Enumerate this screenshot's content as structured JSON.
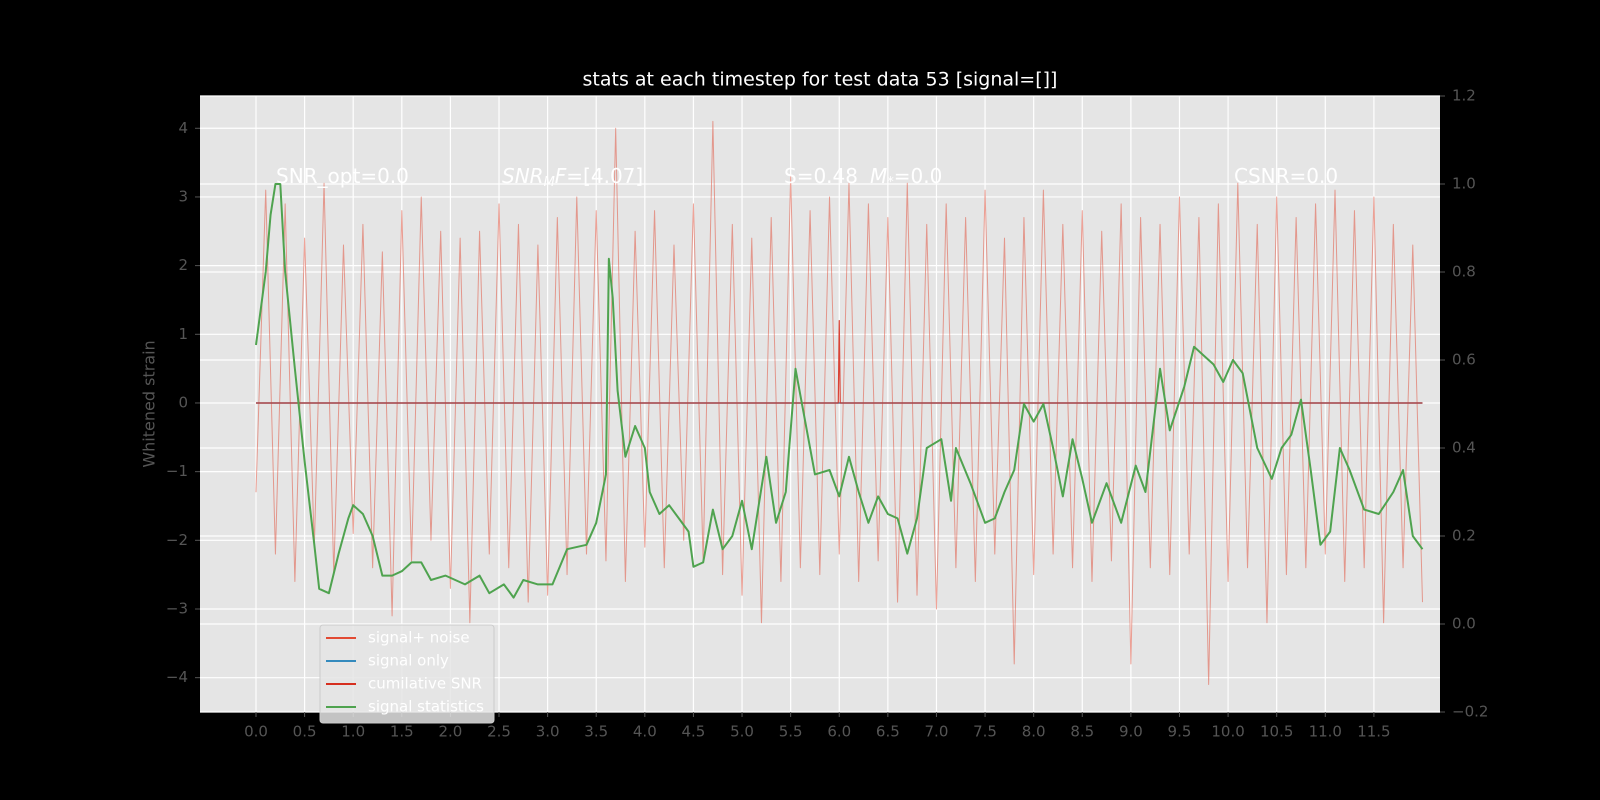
{
  "chart_data": {
    "type": "line",
    "title": "stats at each timestep for test data 53 [signal=[]]",
    "y_label": "Whitened strain",
    "annotations": [
      [
        "SNR_opt=0.0"
      ],
      [
        "SNR",
        "M",
        "F",
        "=[4.07]"
      ],
      [
        "S=0.48",
        "M",
        "*",
        "=0.0"
      ],
      [
        "CSNR=0.0"
      ]
    ],
    "xlim": [
      -0.576,
      12.18
    ],
    "xticks": [
      {
        "value": 0,
        "label": "0.0"
      },
      0.5,
      {
        "value": 1,
        "label": "1.0"
      },
      1.5,
      {
        "value": 2,
        "label": "2.0"
      },
      2.5,
      {
        "value": 3,
        "label": "3.0"
      },
      3.5,
      {
        "value": 4,
        "label": "4.0"
      },
      4.5,
      {
        "value": 5,
        "label": "5.0"
      },
      5.5,
      {
        "value": 6,
        "label": "6.0"
      },
      6.5,
      {
        "value": 7,
        "label": "7.0"
      },
      7.5,
      {
        "value": 8,
        "label": "8.0"
      },
      8.5,
      {
        "value": 9,
        "label": "9.0"
      },
      9.5,
      {
        "value": 10,
        "label": "10.0"
      },
      10.5,
      {
        "value": 11,
        "label": "11.0"
      },
      11.5
    ],
    "ylim": [
      -4.5,
      4.47
    ],
    "yticks": [
      {
        "value": -4,
        "label": "−4"
      },
      {
        "value": -3,
        "label": "−3"
      },
      {
        "value": -2,
        "label": "−2"
      },
      {
        "value": -1,
        "label": "−1"
      },
      0,
      1,
      2,
      3,
      4
    ],
    "y2lim": [
      -0.2,
      1.2
    ],
    "y2ticks": [
      {
        "value": -0.2,
        "label": "−0.2"
      },
      {
        "value": 0,
        "label": "0.0"
      },
      0.2,
      0.4,
      0.6,
      0.8,
      {
        "value": 1,
        "label": "1.0"
      },
      1.2
    ],
    "grid": true,
    "legend": "lower left",
    "series": [
      {
        "name": "signal+ noise",
        "color": "#e24a33",
        "x": [
          0,
          0.1,
          0.2,
          0.3,
          0.4,
          0.5,
          0.6,
          0.7,
          0.8,
          0.9,
          1,
          1.1,
          1.2,
          1.3,
          1.4,
          1.5,
          1.6,
          1.7,
          1.8,
          1.9,
          2,
          2.1,
          2.2,
          2.3,
          2.4,
          2.5,
          2.6,
          2.7,
          2.8,
          2.9,
          3,
          3.1,
          3.2,
          3.3,
          3.4,
          3.5,
          3.6,
          3.7,
          3.8,
          3.9,
          4,
          4.1,
          4.2,
          4.3,
          4.4,
          4.5,
          4.6,
          4.7,
          4.8,
          4.9,
          5,
          5.1,
          5.2,
          5.3,
          5.4,
          5.5,
          5.6,
          5.7,
          5.8,
          5.9,
          6,
          6.1,
          6.2,
          6.3,
          6.4,
          6.5,
          6.6,
          6.7,
          6.8,
          6.9,
          7,
          7.1,
          7.2,
          7.3,
          7.4,
          7.5,
          7.6,
          7.7,
          7.8,
          7.9,
          8,
          8.1,
          8.2,
          8.3,
          8.4,
          8.5,
          8.6,
          8.7,
          8.8,
          8.9,
          9,
          9.1,
          9.2,
          9.3,
          9.4,
          9.5,
          9.6,
          9.7,
          9.8,
          9.9,
          10,
          10.1,
          10.2,
          10.3,
          10.4,
          10.5,
          10.6,
          10.7,
          10.8,
          10.9,
          11,
          11.1,
          11.2,
          11.3,
          11.4,
          11.5,
          11.6,
          11.7,
          11.8,
          11.9,
          12
        ],
        "values": [
          -1.3,
          3.1,
          -2.2,
          2.9,
          -2.6,
          2.4,
          -2.1,
          3.2,
          -2.5,
          2.3,
          -1.9,
          2.6,
          -2.4,
          2.2,
          -3.1,
          2.8,
          -2.3,
          3.0,
          -2.0,
          2.5,
          -2.7,
          2.4,
          -3.2,
          2.5,
          -2.2,
          2.9,
          -2.4,
          2.6,
          -2.9,
          2.3,
          -2.8,
          2.7,
          -2.5,
          3.0,
          -2.2,
          2.8,
          -2.3,
          4.0,
          -2.6,
          2.5,
          -2.1,
          2.8,
          -2.4,
          2.3,
          -2.0,
          2.9,
          -2.3,
          4.1,
          -2.5,
          2.6,
          -2.8,
          2.4,
          -3.2,
          2.7,
          -2.6,
          3.3,
          -2.4,
          2.8,
          -2.5,
          3.0,
          -2.2,
          3.2,
          -2.6,
          2.9,
          -2.3,
          2.7,
          -2.9,
          3.2,
          -2.8,
          2.6,
          -3.0,
          2.9,
          -2.4,
          2.7,
          -2.6,
          3.1,
          -2.2,
          2.4,
          -3.8,
          2.7,
          -2.5,
          3.1,
          -2.2,
          2.6,
          -2.4,
          2.8,
          -2.6,
          2.5,
          -2.3,
          2.9,
          -3.8,
          2.7,
          -2.4,
          2.6,
          -2.5,
          3.0,
          -2.2,
          2.7,
          -4.1,
          2.9,
          -2.6,
          3.2,
          -2.4,
          2.6,
          -3.2,
          3.0,
          -2.5,
          2.7,
          -2.4,
          2.9,
          -2.2,
          3.1,
          -2.6,
          2.8,
          -2.4,
          3.0,
          -3.2,
          2.6,
          -2.4,
          2.3,
          -2.9
        ]
      },
      {
        "name": "signal only",
        "color": "#348abd",
        "x": [
          0,
          12
        ],
        "values": [
          0,
          0
        ]
      },
      {
        "name": "cumilative SNR",
        "color": "#d62f1f",
        "x": [
          0,
          5.99,
          6.0,
          6.01,
          12
        ],
        "values": [
          0,
          0,
          1.2,
          0,
          0
        ]
      },
      {
        "name": "signal statistics",
        "color": "#4fa34f",
        "axis": "y2",
        "x": [
          0,
          0.1,
          0.15,
          0.2,
          0.25,
          0.3,
          0.4,
          0.5,
          0.6,
          0.65,
          0.75,
          0.85,
          0.95,
          1.0,
          1.1,
          1.2,
          1.3,
          1.4,
          1.5,
          1.6,
          1.7,
          1.8,
          1.95,
          2.05,
          2.15,
          2.3,
          2.4,
          2.55,
          2.65,
          2.75,
          2.9,
          3.05,
          3.2,
          3.4,
          3.5,
          3.6,
          3.63,
          3.67,
          3.72,
          3.8,
          3.9,
          4.0,
          4.05,
          4.15,
          4.25,
          4.35,
          4.45,
          4.5,
          4.6,
          4.7,
          4.8,
          4.9,
          5.0,
          5.1,
          5.25,
          5.35,
          5.45,
          5.55,
          5.65,
          5.75,
          5.9,
          6.0,
          6.1,
          6.2,
          6.3,
          6.4,
          6.5,
          6.6,
          6.7,
          6.8,
          6.9,
          7.05,
          7.15,
          7.2,
          7.35,
          7.5,
          7.6,
          7.7,
          7.8,
          7.9,
          8.0,
          8.1,
          8.2,
          8.3,
          8.4,
          8.5,
          8.6,
          8.75,
          8.9,
          9.05,
          9.15,
          9.3,
          9.4,
          9.55,
          9.65,
          9.75,
          9.85,
          9.95,
          10.05,
          10.15,
          10.3,
          10.45,
          10.55,
          10.65,
          10.75,
          10.85,
          10.95,
          11.05,
          11.15,
          11.25,
          11.4,
          11.55,
          11.7,
          11.8,
          11.9,
          12.0
        ],
        "values": [
          0.634,
          0.8,
          0.93,
          1.0,
          1.0,
          0.8,
          0.58,
          0.37,
          0.18,
          0.08,
          0.07,
          0.16,
          0.24,
          0.27,
          0.25,
          0.2,
          0.11,
          0.11,
          0.12,
          0.14,
          0.14,
          0.1,
          0.11,
          0.1,
          0.09,
          0.11,
          0.07,
          0.09,
          0.06,
          0.1,
          0.09,
          0.09,
          0.17,
          0.18,
          0.23,
          0.34,
          0.83,
          0.74,
          0.53,
          0.38,
          0.45,
          0.4,
          0.3,
          0.25,
          0.27,
          0.24,
          0.21,
          0.13,
          0.14,
          0.26,
          0.17,
          0.2,
          0.28,
          0.17,
          0.38,
          0.23,
          0.3,
          0.58,
          0.46,
          0.34,
          0.35,
          0.29,
          0.38,
          0.3,
          0.23,
          0.29,
          0.25,
          0.24,
          0.16,
          0.24,
          0.4,
          0.42,
          0.28,
          0.4,
          0.32,
          0.23,
          0.24,
          0.3,
          0.35,
          0.5,
          0.46,
          0.5,
          0.4,
          0.29,
          0.42,
          0.33,
          0.23,
          0.32,
          0.23,
          0.36,
          0.3,
          0.58,
          0.44,
          0.54,
          0.63,
          0.61,
          0.59,
          0.55,
          0.6,
          0.57,
          0.4,
          0.33,
          0.4,
          0.43,
          0.51,
          0.35,
          0.18,
          0.21,
          0.4,
          0.35,
          0.26,
          0.25,
          0.3,
          0.35,
          0.2,
          0.17
        ]
      }
    ]
  }
}
